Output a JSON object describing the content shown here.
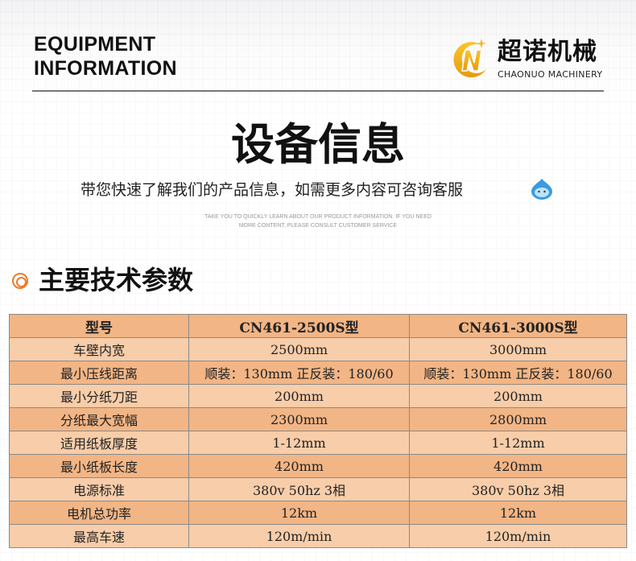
{
  "header": {
    "eyebrow_line1": "EQUIPMENT",
    "eyebrow_line2": "INFORMATION",
    "logo_cn": "超诺机械",
    "logo_en": "CHAONUO MACHINERY"
  },
  "intro": {
    "title": "设备信息",
    "subtitle": "带您快速了解我们的产品信息，如需更多内容可咨询客服",
    "english_line1": "TAKE YOU TO QUICKLY LEARN ABOUT OUR PRODUCT INFORMATION. IF YOU NEED",
    "english_line2": "MORE CONTENT, PLEASE CONSULT CUSTOMER SERVICE"
  },
  "section": {
    "title": "主要技术参数",
    "accent": "#f07a2a"
  },
  "table": {
    "header": [
      "型号",
      "CN461-2500S型",
      "CN461-3000S型"
    ],
    "rows": [
      [
        "车壁内宽",
        "2500mm",
        "3000mm"
      ],
      [
        "最小压线距离",
        "顺装：130mm 正反装：180/60",
        "顺装：130mm 正反装：180/60"
      ],
      [
        "最小分纸刀距",
        "200mm",
        "200mm"
      ],
      [
        "分纸最大宽幅",
        "2300mm",
        "2800mm"
      ],
      [
        "适用纸板厚度",
        "1-12mm",
        "1-12mm"
      ],
      [
        "最小纸板长度",
        "420mm",
        "420mm"
      ],
      [
        "电源标准",
        "380v 50hz 3相",
        "380v 50hz 3相"
      ],
      [
        "电机总功率",
        "12km",
        "12km"
      ],
      [
        "最高车速",
        "120m/min",
        "120m/min"
      ]
    ]
  }
}
